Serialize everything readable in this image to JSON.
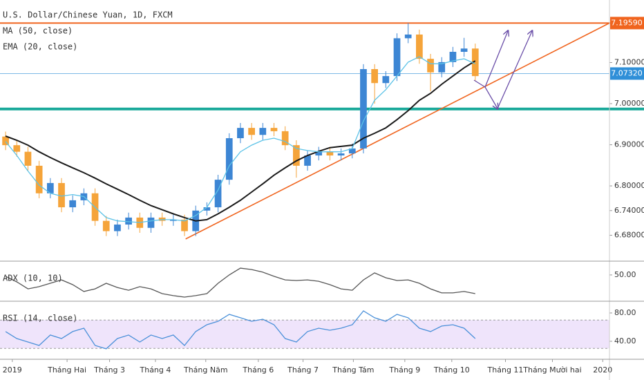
{
  "chart_data": [
    {
      "type": "candlestick",
      "title": "U.S. Dollar/Chinese Yuan, 1D, FXCM",
      "open": [
        6.92,
        6.899,
        6.883,
        6.849,
        6.782,
        6.807,
        6.748,
        6.765,
        6.782,
        6.715,
        6.69,
        6.706,
        6.723,
        6.698,
        6.723,
        6.715,
        6.718,
        6.69,
        6.74,
        6.748,
        6.815,
        6.916,
        6.941,
        6.924,
        6.941,
        6.933,
        6.899,
        6.849,
        6.874,
        6.883,
        6.874,
        6.879,
        6.891,
        7.084,
        7.05,
        7.067,
        7.159,
        7.168,
        7.109,
        7.076,
        7.101,
        7.126,
        7.134
      ],
      "high": [
        6.932,
        6.911,
        6.895,
        6.861,
        6.819,
        6.819,
        6.777,
        6.794,
        6.794,
        6.727,
        6.718,
        6.735,
        6.735,
        6.735,
        6.735,
        6.73,
        6.73,
        6.752,
        6.76,
        6.827,
        6.928,
        6.953,
        6.953,
        6.953,
        6.953,
        6.945,
        6.911,
        6.886,
        6.895,
        6.895,
        6.891,
        6.903,
        7.096,
        7.096,
        7.079,
        7.171,
        7.196,
        7.18,
        7.121,
        7.113,
        7.138,
        7.16,
        7.146
      ],
      "low": [
        6.887,
        6.871,
        6.837,
        6.77,
        6.77,
        6.736,
        6.736,
        6.753,
        6.703,
        6.678,
        6.678,
        6.694,
        6.686,
        6.686,
        6.703,
        6.703,
        6.678,
        6.678,
        6.728,
        6.736,
        6.803,
        6.904,
        6.912,
        6.912,
        6.921,
        6.887,
        6.82,
        6.837,
        6.862,
        6.862,
        6.862,
        6.867,
        6.879,
        7.0,
        7.038,
        7.055,
        7.147,
        7.097,
        7.03,
        7.064,
        7.089,
        7.114,
        7.055
      ],
      "close": [
        6.899,
        6.883,
        6.849,
        6.782,
        6.807,
        6.748,
        6.765,
        6.782,
        6.715,
        6.69,
        6.706,
        6.723,
        6.698,
        6.723,
        6.715,
        6.718,
        6.69,
        6.74,
        6.748,
        6.815,
        6.916,
        6.941,
        6.924,
        6.941,
        6.933,
        6.899,
        6.849,
        6.874,
        6.883,
        6.874,
        6.879,
        6.891,
        7.084,
        7.05,
        7.067,
        7.159,
        7.168,
        7.109,
        7.076,
        7.101,
        7.126,
        7.134,
        7.067
      ],
      "up_color": "#3d86d4",
      "down_color": "#f5a43a",
      "series": [
        {
          "name": "MA (50, close)",
          "color": "#1a1a1a",
          "values": [
            6.921,
            6.911,
            6.899,
            6.883,
            6.869,
            6.856,
            6.844,
            6.832,
            6.819,
            6.805,
            6.792,
            6.779,
            6.765,
            6.752,
            6.742,
            6.732,
            6.723,
            6.715,
            6.718,
            6.732,
            6.748,
            6.765,
            6.785,
            6.805,
            6.826,
            6.844,
            6.861,
            6.874,
            6.884,
            6.893,
            6.896,
            6.899,
            6.916,
            6.928,
            6.941,
            6.961,
            6.983,
            7.008,
            7.025,
            7.047,
            7.067,
            7.087,
            7.104
          ]
        },
        {
          "name": "EMA (20, close)",
          "color": "#5bc2e7",
          "values": [
            6.908,
            6.874,
            6.836,
            6.802,
            6.782,
            6.775,
            6.779,
            6.774,
            6.748,
            6.723,
            6.715,
            6.713,
            6.711,
            6.715,
            6.718,
            6.718,
            6.715,
            6.728,
            6.748,
            6.79,
            6.849,
            6.883,
            6.899,
            6.911,
            6.916,
            6.908,
            6.891,
            6.886,
            6.883,
            6.883,
            6.883,
            6.891,
            6.958,
            7.008,
            7.034,
            7.067,
            7.101,
            7.114,
            7.097,
            7.097,
            7.104,
            7.109,
            7.097
          ]
        }
      ],
      "ylim": [
        6.617,
        7.252
      ],
      "yticks": [
        {
          "value": 6.68,
          "label": "6.68000"
        },
        {
          "value": 6.74,
          "label": "6.74000"
        },
        {
          "value": 6.8,
          "label": "6.80000"
        },
        {
          "value": 6.9,
          "label": "6.90000"
        },
        {
          "value": 7.0,
          "label": "7.00000"
        },
        {
          "value": 7.1,
          "label": "7.10000"
        }
      ],
      "xlim": [
        -0.5,
        54
      ],
      "xticks": [
        {
          "value": 0.6,
          "label": "2019"
        },
        {
          "value": 5.5,
          "label": "Tháng Hai"
        },
        {
          "value": 9.3,
          "label": "Tháng 3"
        },
        {
          "value": 13.4,
          "label": "Tháng 4"
        },
        {
          "value": 17.9,
          "label": "Tháng Năm"
        },
        {
          "value": 22.6,
          "label": "Tháng 6"
        },
        {
          "value": 26.6,
          "label": "Tháng 7"
        },
        {
          "value": 31.1,
          "label": "Tháng Tám"
        },
        {
          "value": 35.7,
          "label": "Tháng 9"
        },
        {
          "value": 39.9,
          "label": "Tháng 10"
        },
        {
          "value": 44.7,
          "label": "Tháng 11"
        },
        {
          "value": 48.9,
          "label": "Tháng Mười hai"
        },
        {
          "value": 53.4,
          "label": "2020"
        }
      ],
      "levels": [
        {
          "value": 7.1959,
          "label": "7.19590",
          "color": "#f0641e"
        },
        {
          "value": 6.987,
          "color": "#1aa99a"
        }
      ],
      "last_price": {
        "value": 7.0732,
        "label": "7.07320",
        "color": "#2f8fd8"
      },
      "trendline": {
        "x": [
          16.1,
          54
        ],
        "y": [
          6.671,
          7.1959
        ],
        "color": "#f0641e"
      }
    },
    {
      "type": "line",
      "title": "ADX (10, 10)",
      "series": [
        {
          "color": "#555555",
          "values": [
            49.1,
            45.5,
            41.0,
            42.4,
            44.6,
            46.8,
            43.7,
            39.3,
            41.0,
            44.6,
            41.9,
            40.1,
            42.4,
            41.0,
            37.9,
            36.6,
            35.7,
            36.6,
            37.9,
            44.6,
            50.0,
            54.4,
            53.5,
            51.8,
            49.1,
            46.8,
            46.4,
            46.8,
            45.9,
            43.7,
            41.0,
            40.1,
            46.8,
            51.3,
            48.2,
            46.4,
            46.8,
            44.6,
            41.0,
            38.4,
            38.4,
            39.3,
            37.9
          ]
        }
      ],
      "ylim": [
        33,
        58
      ],
      "yticks": [
        {
          "value": 50,
          "label": "50.00"
        }
      ]
    },
    {
      "type": "line",
      "title": "RSI (14, close)",
      "series": [
        {
          "color": "#4a90d9",
          "values": [
            53.7,
            43.9,
            39.0,
            34.1,
            48.8,
            43.9,
            53.7,
            58.5,
            34.1,
            29.3,
            43.9,
            48.8,
            39.0,
            48.8,
            43.9,
            48.8,
            34.1,
            53.7,
            63.4,
            68.3,
            78.0,
            73.2,
            68.3,
            71.2,
            63.4,
            43.9,
            39.0,
            53.7,
            58.5,
            55.6,
            58.5,
            63.4,
            82.9,
            73.2,
            68.3,
            78.0,
            73.2,
            58.5,
            53.7,
            61.5,
            63.4,
            58.5,
            43.9
          ]
        }
      ],
      "ylim": [
        14.6,
        94.6
      ],
      "yticks": [
        {
          "value": 40,
          "label": "40.00"
        },
        {
          "value": 80,
          "label": "80.00"
        }
      ],
      "bands": [
        30,
        70
      ],
      "band_color": "#efe4fb"
    }
  ]
}
